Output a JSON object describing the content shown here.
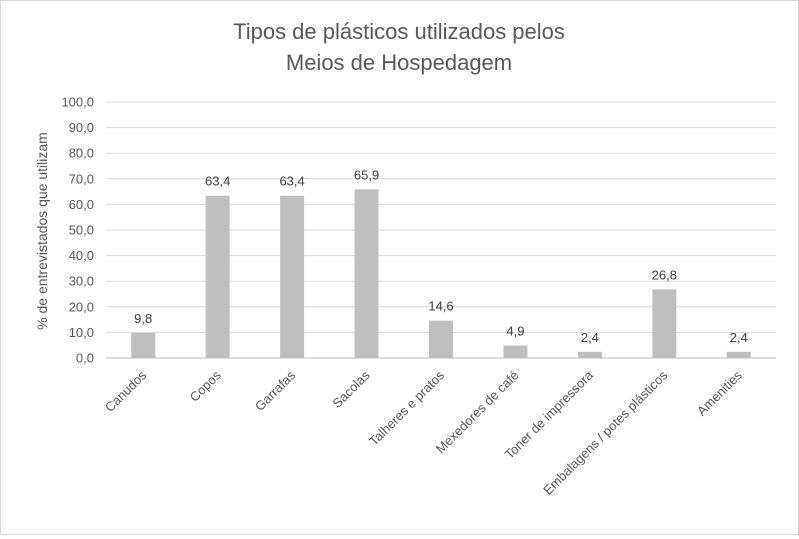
{
  "chart_data": {
    "type": "bar",
    "title_lines": [
      "Tipos de plásticos utilizados pelos",
      "Meios de Hospedagem"
    ],
    "ylabel": "% de entrevistados que utilizam",
    "xlabel": "",
    "ylim": [
      0,
      100
    ],
    "ytick_labels": [
      "0,0",
      "10,0",
      "20,0",
      "30,0",
      "40,0",
      "50,0",
      "60,0",
      "70,0",
      "80,0",
      "90,0",
      "100,0"
    ],
    "ytick_values": [
      0,
      10,
      20,
      30,
      40,
      50,
      60,
      70,
      80,
      90,
      100
    ],
    "grid": true,
    "legend": "none",
    "bar_color": "#bfbfbf",
    "categories": [
      "Canudos",
      "Copos",
      "Garrafas",
      "Sacolas",
      "Talheres e pratos",
      "Mexedores de café",
      "Toner de impressora",
      "Embalagens / potes plásticos",
      "Amenities"
    ],
    "values": [
      9.8,
      63.4,
      63.4,
      65.9,
      14.6,
      4.9,
      2.4,
      26.8,
      2.4
    ],
    "value_labels": [
      "9,8",
      "63,4",
      "63,4",
      "65,9",
      "14,6",
      "4,9",
      "2,4",
      "26,8",
      "2,4"
    ]
  }
}
